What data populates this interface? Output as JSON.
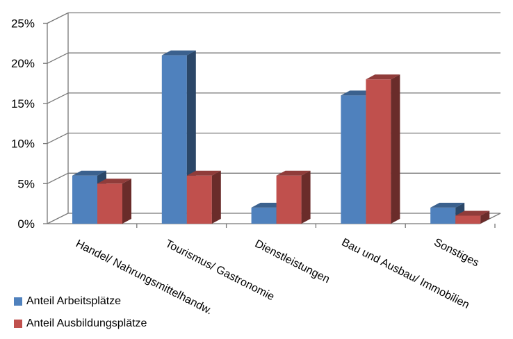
{
  "chart_data": {
    "type": "bar",
    "categories": [
      "Handel/ Nahrungsmittelhandw.",
      "Tourismus/ Gastronomie",
      "Dienstleistungen",
      "Bau und Ausbau/ Immobilien",
      "Sonstiges"
    ],
    "series": [
      {
        "name": "Anteil Arbeitsplätze",
        "values": [
          6,
          21,
          2,
          16,
          2
        ],
        "color": "#4f81bd"
      },
      {
        "name": "Anteil Ausbildungsplätze",
        "values": [
          5,
          6,
          6,
          18,
          1
        ],
        "color": "#c0504d"
      }
    ],
    "yticks": [
      "0%",
      "5%",
      "10%",
      "15%",
      "20%",
      "25%"
    ],
    "ylim": [
      0,
      25
    ],
    "grid": true,
    "legend_position": "bottom-left"
  }
}
